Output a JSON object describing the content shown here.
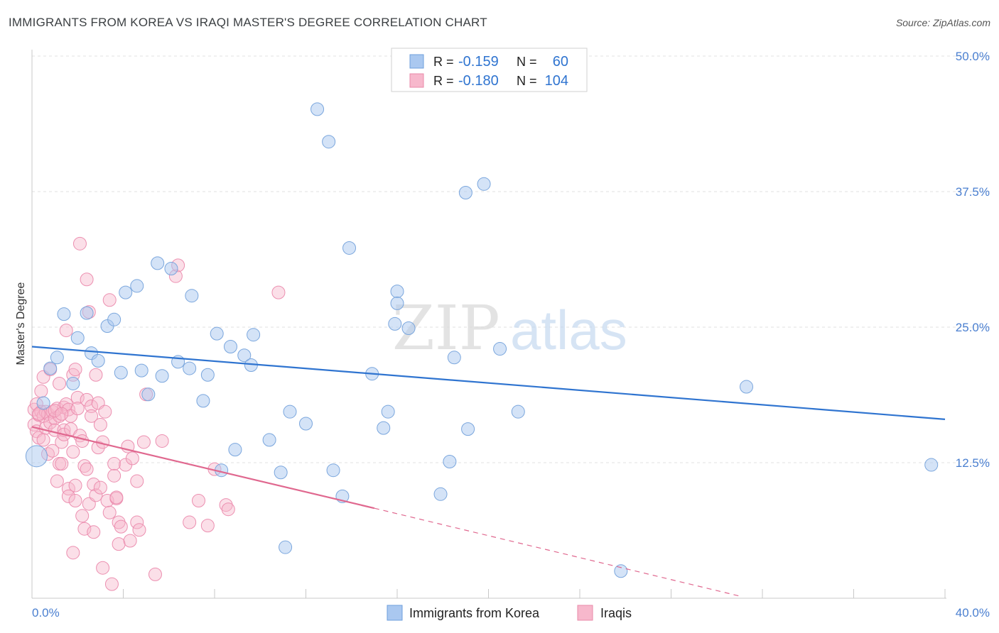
{
  "header": {
    "title": "IMMIGRANTS FROM KOREA VS IRAQI MASTER'S DEGREE CORRELATION CHART",
    "source": "Source: ZipAtlas.com"
  },
  "watermark": {
    "zip": "ZIP",
    "atlas": "atlas"
  },
  "legend_top": [
    {
      "r_label": "R =",
      "r_value": "-0.159",
      "n_label": "N =",
      "n_value": "60",
      "color": "#aac8f0"
    },
    {
      "r_label": "R =",
      "r_value": "-0.180",
      "n_label": "N =",
      "n_value": "104",
      "color": "#f7b8cc"
    }
  ],
  "legend_bottom": [
    {
      "label": "Immigrants from Korea",
      "color": "#aac8f0"
    },
    {
      "label": "Iraqis",
      "color": "#f7b8cc"
    }
  ],
  "chart_data": {
    "type": "scatter",
    "title": "IMMIGRANTS FROM KOREA VS IRAQI MASTER'S DEGREE CORRELATION CHART",
    "xlabel": "",
    "ylabel": "Master's Degree",
    "xlim": [
      0,
      40
    ],
    "ylim": [
      0,
      50
    ],
    "x_tick_labels": [
      "0.0%",
      "40.0%"
    ],
    "y_ticks": [
      12.5,
      25.0,
      37.5,
      50.0
    ],
    "y_tick_labels": [
      "12.5%",
      "25.0%",
      "37.5%",
      "50.0%"
    ],
    "grid": true,
    "legend_position": "top-center",
    "series": [
      {
        "name": "Immigrants from Korea",
        "color": "#aac8f0",
        "line_color": "#2f74d0",
        "r": -0.159,
        "n": 60,
        "trend": {
          "x": [
            0,
            40
          ],
          "y": [
            23.2,
            16.5
          ],
          "dashed_to": null
        },
        "points": [
          [
            0.2,
            13.1
          ],
          [
            0.5,
            18.0
          ],
          [
            0.8,
            21.2
          ],
          [
            1.1,
            22.2
          ],
          [
            1.4,
            26.2
          ],
          [
            2.0,
            24.0
          ],
          [
            1.8,
            19.8
          ],
          [
            2.6,
            22.6
          ],
          [
            2.9,
            21.9
          ],
          [
            2.4,
            26.3
          ],
          [
            3.3,
            25.1
          ],
          [
            3.6,
            25.7
          ],
          [
            3.9,
            20.8
          ],
          [
            4.1,
            28.2
          ],
          [
            4.6,
            28.8
          ],
          [
            4.8,
            21.0
          ],
          [
            5.1,
            18.8
          ],
          [
            5.5,
            30.9
          ],
          [
            5.7,
            20.5
          ],
          [
            6.1,
            30.4
          ],
          [
            6.4,
            21.8
          ],
          [
            6.9,
            21.2
          ],
          [
            7.0,
            27.9
          ],
          [
            7.5,
            18.2
          ],
          [
            7.7,
            20.6
          ],
          [
            8.1,
            24.4
          ],
          [
            8.3,
            11.8
          ],
          [
            8.7,
            23.2
          ],
          [
            8.9,
            13.7
          ],
          [
            9.3,
            22.4
          ],
          [
            9.6,
            21.5
          ],
          [
            9.7,
            24.3
          ],
          [
            10.4,
            14.6
          ],
          [
            10.9,
            11.6
          ],
          [
            11.1,
            4.7
          ],
          [
            11.3,
            17.2
          ],
          [
            12.0,
            16.1
          ],
          [
            12.5,
            45.1
          ],
          [
            13.0,
            42.1
          ],
          [
            13.2,
            11.8
          ],
          [
            13.6,
            9.4
          ],
          [
            13.9,
            32.3
          ],
          [
            14.9,
            20.7
          ],
          [
            15.4,
            15.7
          ],
          [
            15.6,
            17.2
          ],
          [
            15.9,
            25.3
          ],
          [
            16.0,
            28.3
          ],
          [
            16.0,
            27.2
          ],
          [
            16.5,
            24.9
          ],
          [
            17.9,
            9.6
          ],
          [
            18.3,
            12.6
          ],
          [
            18.5,
            22.2
          ],
          [
            19.0,
            37.4
          ],
          [
            19.1,
            15.6
          ],
          [
            19.8,
            38.2
          ],
          [
            20.5,
            23.0
          ],
          [
            21.3,
            17.2
          ],
          [
            25.8,
            2.5
          ],
          [
            31.3,
            19.5
          ],
          [
            39.4,
            12.3
          ]
        ],
        "point_sizes": {
          "default": 9,
          "large": 15,
          "large_index": 0
        }
      },
      {
        "name": "Iraqis",
        "color": "#f7b8cc",
        "line_color": "#e0688f",
        "r": -0.18,
        "n": 104,
        "trend": {
          "x": [
            0,
            15
          ],
          "y": [
            15.8,
            8.3
          ],
          "dashed_to": [
            31,
            0.2
          ]
        },
        "points": [
          [
            0.1,
            17.4
          ],
          [
            0.1,
            16.0
          ],
          [
            0.2,
            15.4
          ],
          [
            0.2,
            17.9
          ],
          [
            0.3,
            14.8
          ],
          [
            0.3,
            16.9
          ],
          [
            0.4,
            19.1
          ],
          [
            0.4,
            17.2
          ],
          [
            0.5,
            16.8
          ],
          [
            0.5,
            20.4
          ],
          [
            0.6,
            17.2
          ],
          [
            0.6,
            15.7
          ],
          [
            0.7,
            13.3
          ],
          [
            0.7,
            17.0
          ],
          [
            0.8,
            16.2
          ],
          [
            0.8,
            21.1
          ],
          [
            0.9,
            13.6
          ],
          [
            0.9,
            17.2
          ],
          [
            1.0,
            16.6
          ],
          [
            1.0,
            15.5
          ],
          [
            1.1,
            10.8
          ],
          [
            1.1,
            17.5
          ],
          [
            1.2,
            19.8
          ],
          [
            1.2,
            16.8
          ],
          [
            1.2,
            12.4
          ],
          [
            1.3,
            14.4
          ],
          [
            1.3,
            12.4
          ],
          [
            1.4,
            15.5
          ],
          [
            1.4,
            15.1
          ],
          [
            1.4,
            17.6
          ],
          [
            1.5,
            17.9
          ],
          [
            1.5,
            24.7
          ],
          [
            1.6,
            10.1
          ],
          [
            1.6,
            17.4
          ],
          [
            1.6,
            9.4
          ],
          [
            1.7,
            16.8
          ],
          [
            1.7,
            15.6
          ],
          [
            1.8,
            20.6
          ],
          [
            1.8,
            4.2
          ],
          [
            1.8,
            13.5
          ],
          [
            1.9,
            21.1
          ],
          [
            1.9,
            9.0
          ],
          [
            1.9,
            10.4
          ],
          [
            2.0,
            18.5
          ],
          [
            2.0,
            17.5
          ],
          [
            2.1,
            32.7
          ],
          [
            2.1,
            15.0
          ],
          [
            2.2,
            14.5
          ],
          [
            2.2,
            7.6
          ],
          [
            2.3,
            6.4
          ],
          [
            2.3,
            12.2
          ],
          [
            2.4,
            11.9
          ],
          [
            2.4,
            18.3
          ],
          [
            2.4,
            29.4
          ],
          [
            2.5,
            8.7
          ],
          [
            2.5,
            26.4
          ],
          [
            2.6,
            17.7
          ],
          [
            2.6,
            16.8
          ],
          [
            2.7,
            6.1
          ],
          [
            2.7,
            10.5
          ],
          [
            2.8,
            9.5
          ],
          [
            2.8,
            20.6
          ],
          [
            2.9,
            18.0
          ],
          [
            2.9,
            13.9
          ],
          [
            3.0,
            10.2
          ],
          [
            3.0,
            16.0
          ],
          [
            3.1,
            14.4
          ],
          [
            3.1,
            2.8
          ],
          [
            3.2,
            17.2
          ],
          [
            3.3,
            9.0
          ],
          [
            3.4,
            27.5
          ],
          [
            3.4,
            7.9
          ],
          [
            3.5,
            1.3
          ],
          [
            3.6,
            12.4
          ],
          [
            3.6,
            11.3
          ],
          [
            3.7,
            9.2
          ],
          [
            3.7,
            9.3
          ],
          [
            3.8,
            5.0
          ],
          [
            3.8,
            7.0
          ],
          [
            3.9,
            6.6
          ],
          [
            4.1,
            12.3
          ],
          [
            4.2,
            14.0
          ],
          [
            4.3,
            5.3
          ],
          [
            4.4,
            12.9
          ],
          [
            4.6,
            10.8
          ],
          [
            4.6,
            7.0
          ],
          [
            4.7,
            6.3
          ],
          [
            4.9,
            14.4
          ],
          [
            5.0,
            18.8
          ],
          [
            5.4,
            2.2
          ],
          [
            5.7,
            14.5
          ],
          [
            6.3,
            29.7
          ],
          [
            6.4,
            30.7
          ],
          [
            6.9,
            7.0
          ],
          [
            7.3,
            9.0
          ],
          [
            7.7,
            6.7
          ],
          [
            8.0,
            11.9
          ],
          [
            8.5,
            8.6
          ],
          [
            8.6,
            8.2
          ],
          [
            10.8,
            28.2
          ],
          [
            0.3,
            17.0
          ],
          [
            0.5,
            14.6
          ],
          [
            1.0,
            17.3
          ],
          [
            1.3,
            17.0
          ]
        ],
        "point_sizes": {
          "default": 9
        }
      }
    ]
  }
}
